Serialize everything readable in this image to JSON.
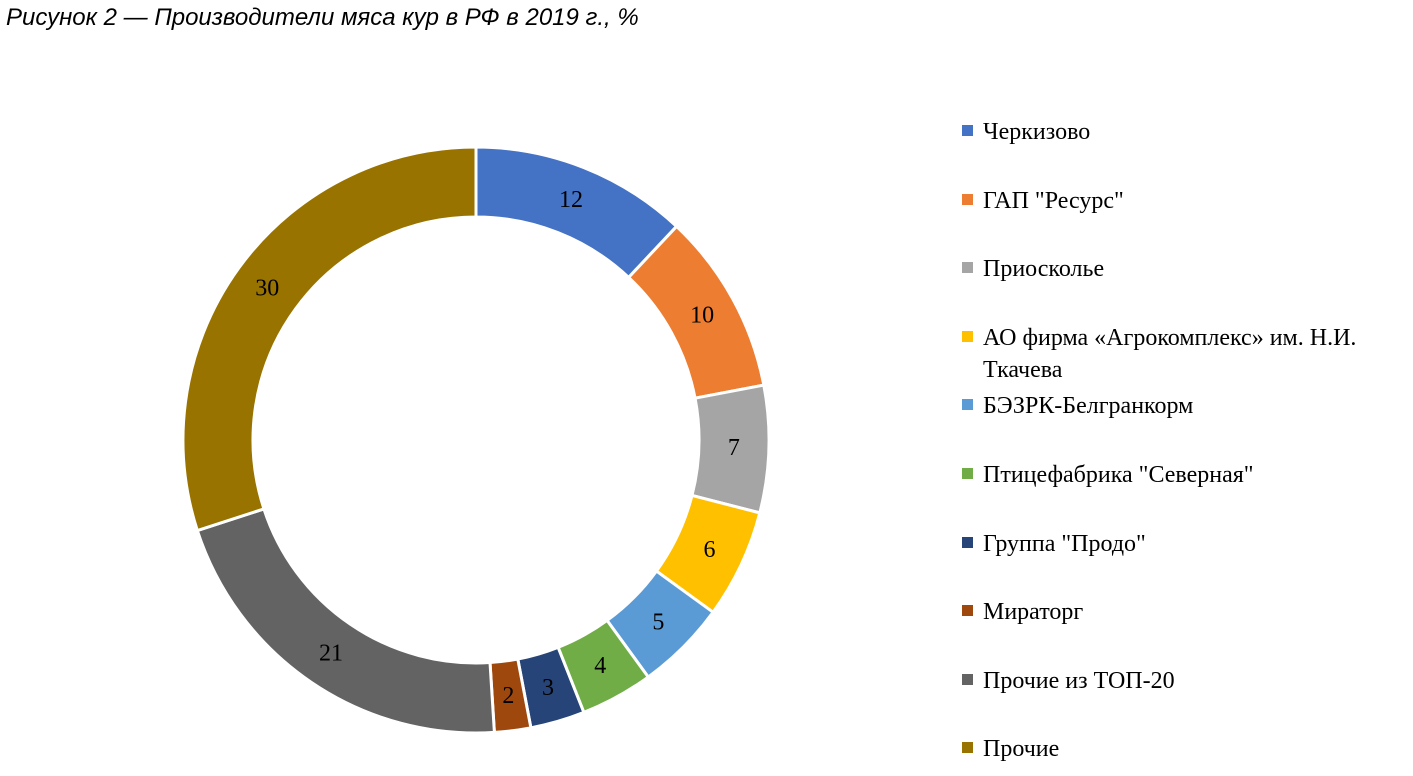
{
  "caption": "Рисунок 2 — Производители мяса кур в РФ в 2019 г., %",
  "chart_data": {
    "type": "pie",
    "subtype": "donut",
    "title": "Рисунок 2 — Производители мяса кур в РФ в 2019 г., %",
    "legend_position": "right",
    "categories": [
      "Черкизово",
      "ГАП \"Ресурс\"",
      "Приосколье",
      "АО фирма «Агрокомплекс» им. Н.И. Ткачева",
      "БЭЗРК-Белгранкорм",
      "Птицефабрика \"Северная\"",
      "Группа \"Продо\"",
      "Мираторг",
      "Прочие из ТОП-20",
      "Прочие"
    ],
    "values": [
      12,
      10,
      7,
      6,
      5,
      4,
      3,
      2,
      21,
      30
    ],
    "colors": [
      "#4472C4",
      "#ED7D31",
      "#A5A5A5",
      "#FFC000",
      "#5B9BD5",
      "#70AD47",
      "#264478",
      "#9E480E",
      "#636363",
      "#997300"
    ]
  }
}
